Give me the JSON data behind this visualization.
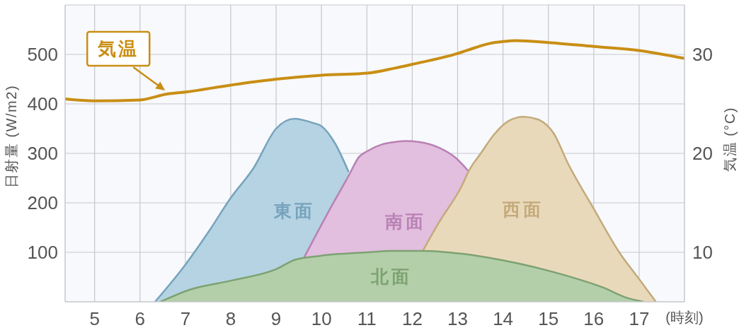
{
  "chart_data": {
    "type": "area",
    "xlabel": "(時刻)",
    "ylabel": "日射量 (W/m2)",
    "y2label": "気温 (°C)",
    "xlim": [
      4.35,
      18
    ],
    "xticks": [
      5,
      6,
      7,
      8,
      9,
      10,
      11,
      12,
      13,
      14,
      15,
      16,
      17
    ],
    "ylim": [
      0,
      600
    ],
    "yticks": [
      100,
      200,
      300,
      400,
      500
    ],
    "y2lim": [
      5,
      35
    ],
    "y2ticks": [
      10,
      20,
      30
    ],
    "grid": true,
    "marker": "none",
    "series": [
      {
        "name": "東面",
        "color": "#b5d3e3",
        "x": [
          6.33,
          7,
          7.5,
          8,
          8.5,
          9,
          9.4,
          9.8,
          10,
          10.3,
          10.6
        ],
        "values": [
          0,
          75,
          140,
          210,
          270,
          350,
          370,
          362,
          355,
          320,
          262
        ]
      },
      {
        "name": "南面",
        "color": "#e2bedf",
        "x": [
          9.62,
          10.19,
          10.6,
          10.82,
          11.02,
          11.33,
          11.54,
          11.85,
          12.16,
          12.58,
          12.97,
          13.23
        ],
        "values": [
          90,
          188,
          255,
          292,
          305,
          318,
          322,
          325,
          323,
          312,
          290,
          265
        ]
      },
      {
        "name": "西面",
        "color": "#e9d9bb",
        "x": [
          12.24,
          12.58,
          13.09,
          13.25,
          13.51,
          13.82,
          14.13,
          14.45,
          14.76,
          15.12,
          15.43,
          16.0,
          16.57,
          16.99,
          17.37
        ],
        "values": [
          104,
          159,
          234,
          265,
          300,
          340,
          366,
          374,
          369,
          340,
          280,
          188,
          99,
          47,
          0
        ]
      },
      {
        "name": "北面",
        "color": "#b3cfaa",
        "x": [
          6.45,
          7.08,
          8.02,
          9.0,
          9.42,
          9.98,
          11.02,
          11.54,
          12.24,
          13.1,
          13.93,
          14.65,
          15.43,
          16.2,
          16.73,
          17.1
        ],
        "values": [
          0,
          24,
          43,
          66,
          85,
          93,
          100,
          103,
          103,
          97,
          85,
          71,
          52,
          29,
          8,
          0
        ]
      },
      {
        "name": "気温",
        "type": "line",
        "axis": "y2",
        "color": "#c98e14",
        "x": [
          4.35,
          5,
          6,
          6.6,
          7,
          8,
          9,
          10,
          11,
          11.6,
          12,
          13,
          13.2,
          13.7,
          14,
          14.3,
          15,
          16,
          17,
          18
        ],
        "values": [
          25.5,
          25.3,
          25.4,
          26.0,
          26.2,
          26.9,
          27.5,
          27.9,
          28.1,
          28.6,
          29.0,
          30.1,
          30.4,
          31.1,
          31.3,
          31.4,
          31.2,
          30.8,
          30.4,
          29.6
        ]
      }
    ]
  }
}
